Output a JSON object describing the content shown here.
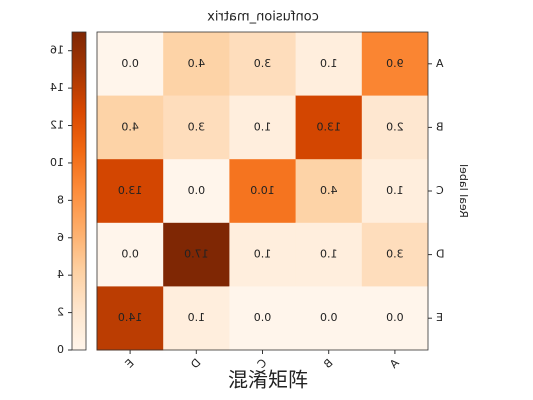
{
  "chart_data": {
    "type": "heatmap",
    "title": "confusion_matrix",
    "ylabel": "Real label",
    "x_categories": [
      "A",
      "B",
      "C",
      "D",
      "E"
    ],
    "y_categories": [
      "A",
      "B",
      "C",
      "D",
      "E"
    ],
    "values": [
      [
        9,
        1,
        3,
        4,
        0
      ],
      [
        2,
        13,
        1,
        3,
        4
      ],
      [
        1,
        4,
        10,
        0,
        13
      ],
      [
        3,
        1,
        1,
        17,
        0
      ],
      [
        0,
        0,
        0,
        1,
        14
      ]
    ],
    "value_labels": [
      [
        "9.0",
        "1.0",
        "3.0",
        "4.0",
        "0.0"
      ],
      [
        "2.0",
        "13.0",
        "1.0",
        "3.0",
        "4.0"
      ],
      [
        "1.0",
        "4.0",
        "10.0",
        "0.0",
        "13.0"
      ],
      [
        "3.0",
        "1.0",
        "1.0",
        "17.0",
        "0.0"
      ],
      [
        "0.0",
        "0.0",
        "0.0",
        "1.0",
        "14.0"
      ]
    ],
    "colormap": [
      "#fff5eb",
      "#fee6ce",
      "#fdd0a2",
      "#fdae6b",
      "#fd8d3c",
      "#f16913",
      "#d94801",
      "#a63603",
      "#7f2704"
    ],
    "clim": [
      0,
      17
    ],
    "cticks": [
      0,
      2,
      4,
      6,
      8,
      10,
      12,
      14,
      16
    ],
    "caption": "混淆矩阵"
  }
}
